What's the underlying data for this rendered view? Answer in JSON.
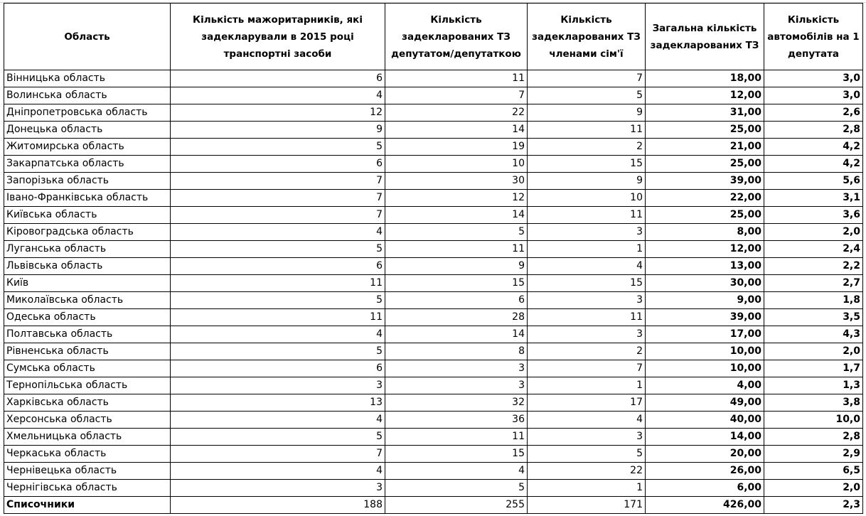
{
  "headers": [
    "Область",
    "Кількість мажоритарників, які задекларували в 2015 році транспортні засоби",
    "Кількість задекларованих ТЗ депутатом/депутаткою",
    "Кількість задекларованих ТЗ членами сім'ї",
    "Загальна кількість задекларованих ТЗ",
    "Кількість автомобілів на 1 депутата"
  ],
  "rows": [
    [
      "Вінницька область",
      "6",
      "11",
      "7",
      "18,00",
      "3,0"
    ],
    [
      "Волинська область",
      "4",
      "7",
      "5",
      "12,00",
      "3,0"
    ],
    [
      "Дніпропетровська область",
      "12",
      "22",
      "9",
      "31,00",
      "2,6"
    ],
    [
      "Донецька область",
      "9",
      "14",
      "11",
      "25,00",
      "2,8"
    ],
    [
      "Житомирська область",
      "5",
      "19",
      "2",
      "21,00",
      "4,2"
    ],
    [
      "Закарпатська область",
      "6",
      "10",
      "15",
      "25,00",
      "4,2"
    ],
    [
      "Запорізька область",
      "7",
      "30",
      "9",
      "39,00",
      "5,6"
    ],
    [
      "Івано-Франківська область",
      "7",
      "12",
      "10",
      "22,00",
      "3,1"
    ],
    [
      "Київська область",
      "7",
      "14",
      "11",
      "25,00",
      "3,6"
    ],
    [
      "Кіровоградська область",
      "4",
      "5",
      "3",
      "8,00",
      "2,0"
    ],
    [
      "Луганська область",
      "5",
      "11",
      "1",
      "12,00",
      "2,4"
    ],
    [
      "Львівська область",
      "6",
      "9",
      "4",
      "13,00",
      "2,2"
    ],
    [
      "Київ",
      "11",
      "15",
      "15",
      "30,00",
      "2,7"
    ],
    [
      "Миколаївська область",
      "5",
      "6",
      "3",
      "9,00",
      "1,8"
    ],
    [
      "Одеська область",
      "11",
      "28",
      "11",
      "39,00",
      "3,5"
    ],
    [
      "Полтавська область",
      "4",
      "14",
      "3",
      "17,00",
      "4,3"
    ],
    [
      "Рівненська область",
      "5",
      "8",
      "2",
      "10,00",
      "2,0"
    ],
    [
      "Сумська область",
      "6",
      "3",
      "7",
      "10,00",
      "1,7"
    ],
    [
      "Тернопільська область",
      "3",
      "3",
      "1",
      "4,00",
      "1,3"
    ],
    [
      "Харківська область",
      "13",
      "32",
      "17",
      "49,00",
      "3,8"
    ],
    [
      "Херсонська область",
      "4",
      "36",
      "4",
      "40,00",
      "10,0"
    ],
    [
      "Хмельницька область",
      "5",
      "11",
      "3",
      "14,00",
      "2,8"
    ],
    [
      "Черкаська область",
      "7",
      "15",
      "5",
      "20,00",
      "2,9"
    ],
    [
      "Чернівецька область",
      "4",
      "4",
      "22",
      "26,00",
      "6,5"
    ],
    [
      "Чернігівська область",
      "3",
      "5",
      "1",
      "6,00",
      "2,0"
    ]
  ],
  "total": [
    "Списочники",
    "188",
    "255",
    "171",
    "426,00",
    "2,3"
  ]
}
